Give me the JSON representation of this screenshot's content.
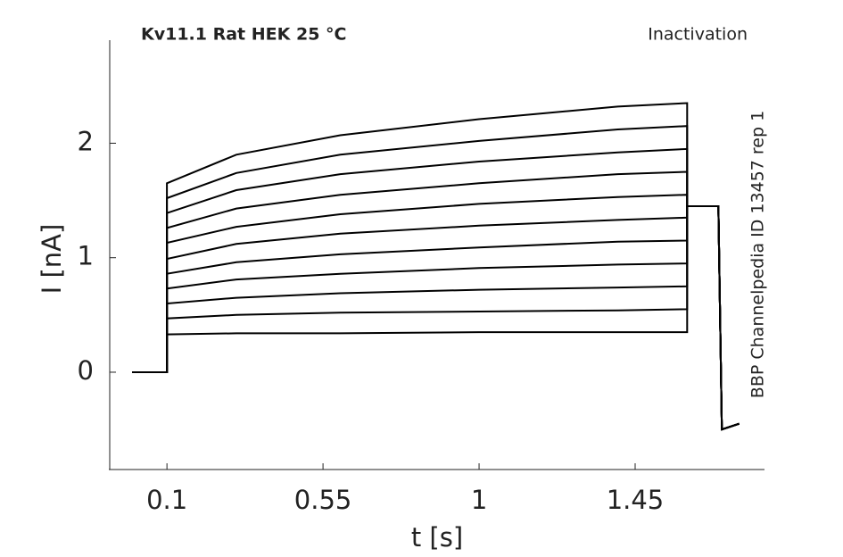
{
  "chart_data": {
    "type": "line",
    "title": "Kv11.1  Rat  HEK  25 °C",
    "subtitle": "Inactivation",
    "annotation": "BBP Channelpedia ID 13457 rep 1",
    "x_label": "t [s]",
    "y_label": "I [nA]",
    "color": "#000000",
    "x": [
      0,
      0.1,
      0.1,
      0.3,
      0.6,
      1.0,
      1.4,
      1.6,
      1.6,
      1.69,
      1.7,
      1.75
    ],
    "series": [
      {
        "values": [
          0,
          0,
          0.33,
          0.34,
          0.34,
          0.35,
          0.35,
          0.35,
          1.45,
          1.45,
          -0.5,
          -0.45
        ]
      },
      {
        "values": [
          0,
          0,
          0.47,
          0.5,
          0.52,
          0.53,
          0.54,
          0.55,
          1.45,
          1.45,
          -0.5,
          -0.45
        ]
      },
      {
        "values": [
          0,
          0,
          0.6,
          0.65,
          0.69,
          0.72,
          0.74,
          0.75,
          1.45,
          1.45,
          -0.5,
          -0.45
        ]
      },
      {
        "values": [
          0,
          0,
          0.73,
          0.81,
          0.86,
          0.91,
          0.94,
          0.95,
          1.45,
          1.45,
          -0.5,
          -0.45
        ]
      },
      {
        "values": [
          0,
          0,
          0.86,
          0.96,
          1.03,
          1.09,
          1.14,
          1.15,
          1.45,
          1.45,
          -0.5,
          -0.45
        ]
      },
      {
        "values": [
          0,
          0,
          0.99,
          1.12,
          1.21,
          1.28,
          1.33,
          1.35,
          1.45,
          1.45,
          -0.5,
          -0.45
        ]
      },
      {
        "values": [
          0,
          0,
          1.13,
          1.27,
          1.38,
          1.47,
          1.53,
          1.55,
          1.45,
          1.45,
          -0.5,
          -0.45
        ]
      },
      {
        "values": [
          0,
          0,
          1.26,
          1.43,
          1.55,
          1.65,
          1.73,
          1.75,
          1.45,
          1.45,
          -0.5,
          -0.45
        ]
      },
      {
        "values": [
          0,
          0,
          1.39,
          1.59,
          1.73,
          1.84,
          1.92,
          1.95,
          1.45,
          1.45,
          -0.5,
          -0.45
        ]
      },
      {
        "values": [
          0,
          0,
          1.52,
          1.74,
          1.9,
          2.02,
          2.12,
          2.15,
          1.45,
          1.45,
          -0.5,
          -0.45
        ]
      },
      {
        "values": [
          0,
          0,
          1.65,
          1.9,
          2.07,
          2.21,
          2.32,
          2.35,
          1.45,
          1.45,
          -0.5,
          -0.45
        ]
      }
    ],
    "xlim": [
      -0.065,
      1.823
    ],
    "xticks": [
      0.1,
      0.55,
      1,
      1.45
    ],
    "ylim": [
      -0.85,
      2.9
    ],
    "yticks": [
      0,
      1,
      2
    ]
  }
}
